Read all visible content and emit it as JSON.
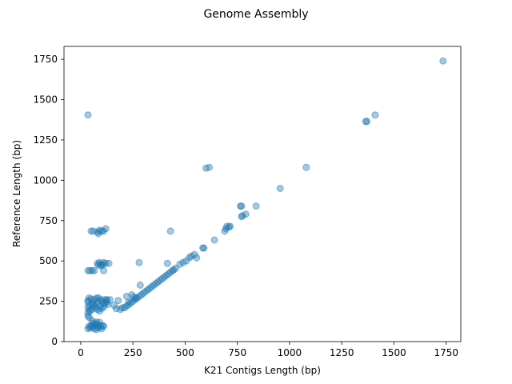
{
  "chart_data": {
    "type": "scatter",
    "title": "Genome Assembly",
    "xlabel": "K21 Contigs Length (bp)",
    "ylabel": "Reference Length (bp)",
    "xlim": [
      -80,
      1820
    ],
    "ylim": [
      0,
      1830
    ],
    "xticks": [
      0,
      250,
      500,
      750,
      1000,
      1250,
      1500,
      1750
    ],
    "yticks": [
      0,
      250,
      500,
      750,
      1000,
      1250,
      1500,
      1750
    ],
    "grid": false,
    "marker_color": "#1f77b4",
    "marker_alpha": 0.4,
    "series": [
      {
        "points": [
          [
            1735,
            1740
          ],
          [
            1410,
            1405
          ],
          [
            1365,
            1365
          ],
          [
            1370,
            1365
          ],
          [
            35,
            1405
          ],
          [
            1080,
            1080
          ],
          [
            600,
            1075
          ],
          [
            615,
            1080
          ],
          [
            955,
            950
          ],
          [
            840,
            840
          ],
          [
            765,
            840
          ],
          [
            770,
            840
          ],
          [
            790,
            790
          ],
          [
            770,
            775
          ],
          [
            775,
            780
          ],
          [
            715,
            715
          ],
          [
            700,
            715
          ],
          [
            710,
            710
          ],
          [
            695,
            700
          ],
          [
            690,
            685
          ],
          [
            640,
            630
          ],
          [
            590,
            580
          ],
          [
            585,
            580
          ],
          [
            555,
            520
          ],
          [
            545,
            540
          ],
          [
            530,
            530
          ],
          [
            520,
            520
          ],
          [
            505,
            500
          ],
          [
            490,
            490
          ],
          [
            475,
            480
          ],
          [
            455,
            455
          ],
          [
            445,
            445
          ],
          [
            440,
            440
          ],
          [
            430,
            430
          ],
          [
            420,
            420
          ],
          [
            410,
            410
          ],
          [
            400,
            400
          ],
          [
            390,
            390
          ],
          [
            380,
            380
          ],
          [
            370,
            370
          ],
          [
            360,
            360
          ],
          [
            350,
            350
          ],
          [
            340,
            340
          ],
          [
            330,
            330
          ],
          [
            320,
            320
          ],
          [
            310,
            310
          ],
          [
            300,
            300
          ],
          [
            290,
            290
          ],
          [
            280,
            280
          ],
          [
            270,
            270
          ],
          [
            260,
            260
          ],
          [
            250,
            250
          ],
          [
            240,
            240
          ],
          [
            230,
            230
          ],
          [
            220,
            220
          ],
          [
            210,
            210
          ],
          [
            200,
            210
          ],
          [
            190,
            200
          ],
          [
            415,
            485
          ],
          [
            280,
            490
          ],
          [
            285,
            350
          ],
          [
            430,
            685
          ],
          [
            220,
            280
          ],
          [
            230,
            245
          ],
          [
            245,
            290
          ],
          [
            255,
            275
          ],
          [
            265,
            270
          ],
          [
            170,
            205
          ],
          [
            160,
            225
          ],
          [
            180,
            255
          ],
          [
            140,
            260
          ],
          [
            120,
            240
          ],
          [
            125,
            260
          ],
          [
            110,
            235
          ],
          [
            95,
            220
          ],
          [
            85,
            250
          ],
          [
            75,
            270
          ],
          [
            65,
            260
          ],
          [
            55,
            240
          ],
          [
            45,
            225
          ],
          [
            35,
            245
          ],
          [
            35,
            215
          ],
          [
            40,
            200
          ],
          [
            35,
            180
          ],
          [
            35,
            160
          ],
          [
            40,
            150
          ],
          [
            50,
            265
          ],
          [
            60,
            230
          ],
          [
            70,
            210
          ],
          [
            80,
            200
          ],
          [
            90,
            190
          ],
          [
            100,
            205
          ],
          [
            110,
            215
          ],
          [
            115,
            260
          ],
          [
            125,
            250
          ],
          [
            130,
            230
          ],
          [
            85,
            270
          ],
          [
            95,
            260
          ],
          [
            105,
            250
          ],
          [
            75,
            235
          ],
          [
            65,
            220
          ],
          [
            55,
            200
          ],
          [
            45,
            190
          ],
          [
            35,
            255
          ],
          [
            40,
            270
          ],
          [
            35,
            440
          ],
          [
            45,
            440
          ],
          [
            55,
            440
          ],
          [
            65,
            440
          ],
          [
            110,
            440
          ],
          [
            80,
            485
          ],
          [
            90,
            490
          ],
          [
            100,
            480
          ],
          [
            110,
            490
          ],
          [
            120,
            485
          ],
          [
            135,
            485
          ],
          [
            85,
            475
          ],
          [
            95,
            470
          ],
          [
            105,
            475
          ],
          [
            50,
            685
          ],
          [
            60,
            685
          ],
          [
            80,
            680
          ],
          [
            90,
            690
          ],
          [
            100,
            685
          ],
          [
            110,
            685
          ],
          [
            120,
            700
          ],
          [
            85,
            670
          ],
          [
            35,
            80
          ],
          [
            45,
            85
          ],
          [
            55,
            90
          ],
          [
            65,
            80
          ],
          [
            75,
            75
          ],
          [
            85,
            85
          ],
          [
            95,
            95
          ],
          [
            105,
            100
          ],
          [
            70,
            100
          ],
          [
            80,
            110
          ],
          [
            90,
            120
          ],
          [
            60,
            115
          ],
          [
            50,
            100
          ],
          [
            40,
            95
          ],
          [
            65,
            105
          ],
          [
            75,
            120
          ],
          [
            100,
            80
          ],
          [
            110,
            95
          ],
          [
            55,
            130
          ],
          [
            85,
            100
          ]
        ]
      }
    ]
  }
}
